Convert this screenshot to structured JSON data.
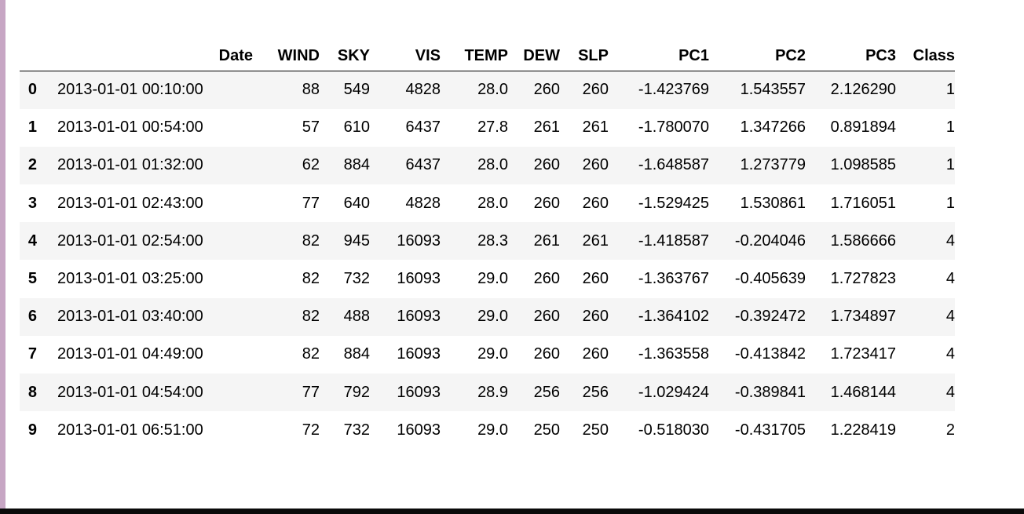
{
  "table": {
    "columns": [
      "",
      "Date",
      "WIND",
      "SKY",
      "VIS",
      "TEMP",
      "DEW",
      "SLP",
      "PC1",
      "PC2",
      "PC3",
      "Class"
    ],
    "rows": [
      [
        "0",
        "2013-01-01 00:10:00",
        "88",
        "549",
        "4828",
        "28.0",
        "260",
        "260",
        "-1.423769",
        "1.543557",
        "2.126290",
        "1"
      ],
      [
        "1",
        "2013-01-01 00:54:00",
        "57",
        "610",
        "6437",
        "27.8",
        "261",
        "261",
        "-1.780070",
        "1.347266",
        "0.891894",
        "1"
      ],
      [
        "2",
        "2013-01-01 01:32:00",
        "62",
        "884",
        "6437",
        "28.0",
        "260",
        "260",
        "-1.648587",
        "1.273779",
        "1.098585",
        "1"
      ],
      [
        "3",
        "2013-01-01 02:43:00",
        "77",
        "640",
        "4828",
        "28.0",
        "260",
        "260",
        "-1.529425",
        "1.530861",
        "1.716051",
        "1"
      ],
      [
        "4",
        "2013-01-01 02:54:00",
        "82",
        "945",
        "16093",
        "28.3",
        "261",
        "261",
        "-1.418587",
        "-0.204046",
        "1.586666",
        "4"
      ],
      [
        "5",
        "2013-01-01 03:25:00",
        "82",
        "732",
        "16093",
        "29.0",
        "260",
        "260",
        "-1.363767",
        "-0.405639",
        "1.727823",
        "4"
      ],
      [
        "6",
        "2013-01-01 03:40:00",
        "82",
        "488",
        "16093",
        "29.0",
        "260",
        "260",
        "-1.364102",
        "-0.392472",
        "1.734897",
        "4"
      ],
      [
        "7",
        "2013-01-01 04:49:00",
        "82",
        "884",
        "16093",
        "29.0",
        "260",
        "260",
        "-1.363558",
        "-0.413842",
        "1.723417",
        "4"
      ],
      [
        "8",
        "2013-01-01 04:54:00",
        "77",
        "792",
        "16093",
        "28.9",
        "256",
        "256",
        "-1.029424",
        "-0.389841",
        "1.468144",
        "4"
      ],
      [
        "9",
        "2013-01-01 06:51:00",
        "72",
        "732",
        "16093",
        "29.0",
        "250",
        "250",
        "-0.518030",
        "-0.431705",
        "1.228419",
        "2"
      ]
    ]
  },
  "colors": {
    "left_accent": "#c7a6c4",
    "bottom_bar": "#0a0a0a",
    "stripe": "#f5f5f5"
  }
}
